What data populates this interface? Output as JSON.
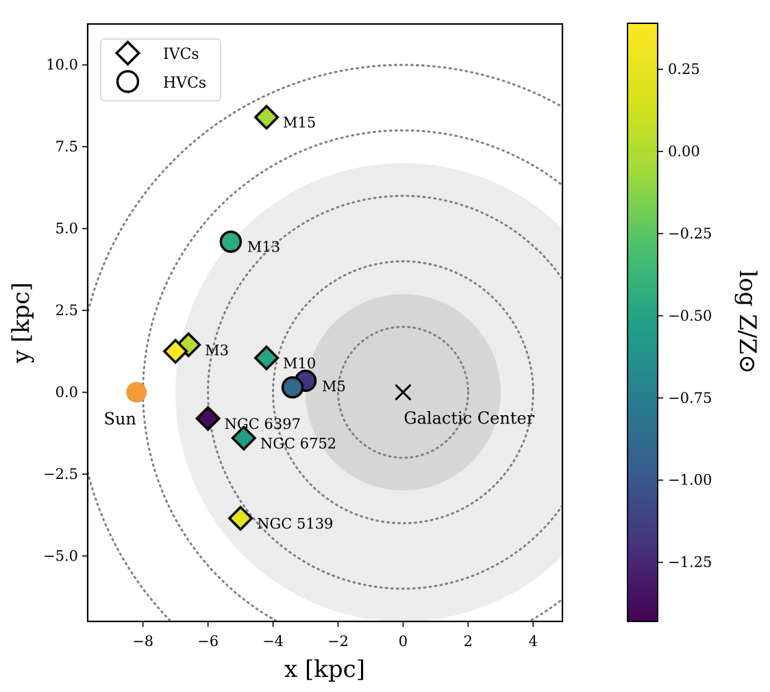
{
  "chart_data": {
    "type": "scatter",
    "xlabel": "x [kpc]",
    "ylabel": "y [kpc]",
    "xlim": [
      -9.7,
      4.9
    ],
    "ylim": [
      -7.0,
      11.25
    ],
    "xticks": [
      -8,
      -6,
      -4,
      -2,
      0,
      2,
      4
    ],
    "yticks": [
      -5.0,
      -2.5,
      0.0,
      2.5,
      5.0,
      7.5,
      10.0
    ],
    "xtick_labels": [
      "−8",
      "−6",
      "−4",
      "−2",
      "0",
      "2",
      "4"
    ],
    "ytick_labels": [
      "−5.0",
      "−2.5",
      "0.0",
      "2.5",
      "5.0",
      "7.5",
      "10.0"
    ],
    "grid": false,
    "shaded_disks": [
      {
        "radius": 7,
        "color": "#ececec"
      },
      {
        "radius": 3,
        "color": "#d6d6d6"
      }
    ],
    "dotted_circles": [
      2,
      4,
      6,
      8,
      10
    ],
    "galactic_center": {
      "x": 0,
      "y": 0,
      "label": "Galactic Center"
    },
    "sun": {
      "x": -8.2,
      "y": 0,
      "label": "Sun",
      "color": "#f39a3a"
    },
    "colorbar": {
      "label": "log Z/Z⊙",
      "min": -1.43,
      "max": 0.39,
      "ticks": [
        0.25,
        0.0,
        -0.25,
        -0.5,
        -0.75,
        -1.0,
        -1.25
      ],
      "tick_labels": [
        "0.25",
        "0.00",
        "−0.25",
        "−0.50",
        "−0.75",
        "−1.00",
        "−1.25"
      ],
      "colormap": "viridis"
    },
    "legend": {
      "position": "top-left",
      "entries": [
        {
          "marker": "diamond",
          "label": "IVCs"
        },
        {
          "marker": "circle",
          "label": "HVCs"
        }
      ]
    },
    "points": [
      {
        "name": "M15",
        "x": -4.2,
        "y": 8.4,
        "marker": "diamond",
        "logZ": -0.05
      },
      {
        "name": "M13",
        "x": -5.3,
        "y": 4.6,
        "marker": "circle",
        "logZ": -0.45
      },
      {
        "name": "M3",
        "x": -6.6,
        "y": 1.45,
        "marker": "diamond",
        "logZ": 0.02,
        "show_label": true
      },
      {
        "name": "",
        "x": -7.0,
        "y": 1.25,
        "marker": "diamond",
        "logZ": 0.38,
        "show_label": false
      },
      {
        "name": "M10",
        "x": -4.2,
        "y": 1.05,
        "marker": "diamond",
        "logZ": -0.5
      },
      {
        "name": "M5",
        "x": -3.0,
        "y": 0.35,
        "marker": "circle",
        "logZ": -1.2,
        "show_label": true
      },
      {
        "name": "",
        "x": -3.4,
        "y": 0.15,
        "marker": "circle",
        "logZ": -0.9,
        "show_label": false
      },
      {
        "name": "NGC 6397",
        "x": -6.0,
        "y": -0.8,
        "marker": "diamond",
        "logZ": -1.38
      },
      {
        "name": "NGC 6752",
        "x": -4.9,
        "y": -1.4,
        "marker": "diamond",
        "logZ": -0.55
      },
      {
        "name": "NGC 5139",
        "x": -5.0,
        "y": -3.85,
        "marker": "diamond",
        "logZ": 0.25
      }
    ]
  }
}
